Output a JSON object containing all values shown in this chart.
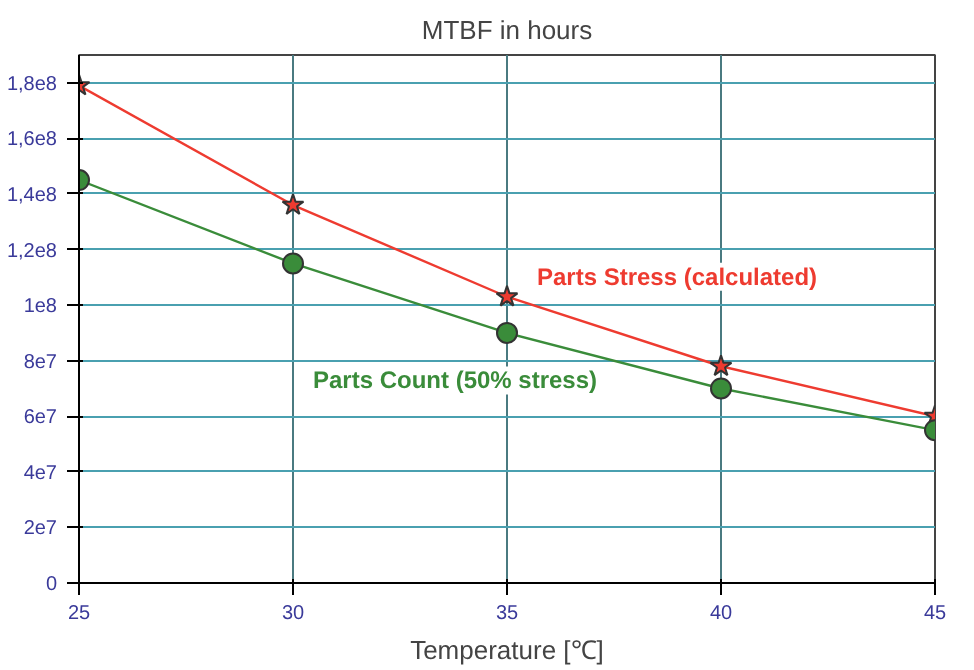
{
  "chart_data": {
    "type": "line",
    "title": "MTBF in hours",
    "xlabel": "Temperature [℃]",
    "x": [
      25,
      30,
      35,
      40,
      45
    ],
    "series": [
      {
        "name": "Parts Stress (calculated)",
        "color": "#ee3b30",
        "marker": "star",
        "values": [
          179000000,
          136000000,
          103000000,
          78000000,
          60000000
        ]
      },
      {
        "name": "Parts Count (50% stress)",
        "color": "#3a8c3a",
        "marker": "circle",
        "values": [
          145000000,
          115000000,
          90000000,
          70000000,
          55000000
        ]
      }
    ],
    "xlim": [
      25,
      45
    ],
    "xticks": [
      25,
      30,
      35,
      40,
      45
    ],
    "ylim": [
      0,
      190000000
    ],
    "yticks": [
      0,
      {
        "value": 20000000,
        "label": "2e7"
      },
      {
        "value": 40000000,
        "label": "4e7"
      },
      {
        "value": 60000000,
        "label": "6e7"
      },
      {
        "value": 80000000,
        "label": "8e7"
      },
      {
        "value": 100000000,
        "label": "1e8"
      },
      {
        "value": 120000000,
        "label": "1,2e8"
      },
      {
        "value": 140000000,
        "label": "1,4e8"
      },
      {
        "value": 160000000,
        "label": "1,6e8"
      },
      {
        "value": 180000000,
        "label": "1,8e8"
      }
    ],
    "grid": true,
    "legend": false,
    "line_style": "solid"
  }
}
